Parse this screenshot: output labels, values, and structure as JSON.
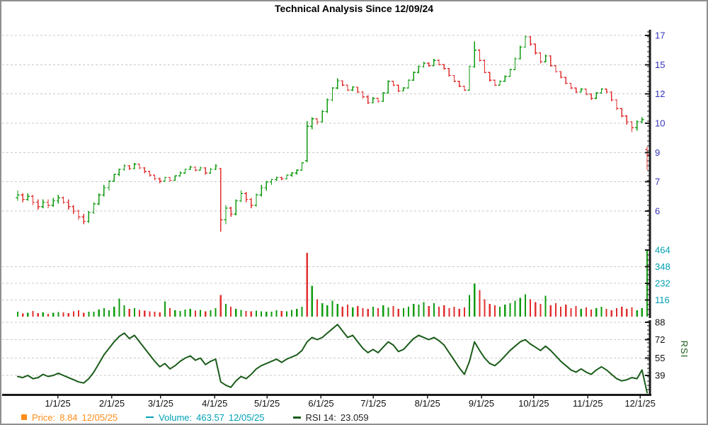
{
  "title": "Technical Analysis Since 12/09/24",
  "colors": {
    "up": "#0f9b0f",
    "down": "#e22f2f",
    "rsi_line": "#1a5c1a",
    "grid": "#c9c9c9",
    "axis": "#1a1a1a",
    "frame": "#8f8f8f",
    "price_axis_text": "#3333bb",
    "volume_axis_text": "#00a0b4",
    "rsi_axis_text": "#111111",
    "x_axis_text": "#111111",
    "title_text": "#000000"
  },
  "x_axis": {
    "labels": [
      "1/1/25",
      "2/1/25",
      "3/1/25",
      "4/1/25",
      "5/1/25",
      "6/1/25",
      "7/1/25",
      "8/1/25",
      "9/1/25",
      "10/1/25",
      "11/1/25",
      "12/1/25"
    ],
    "fractions": [
      0.0637,
      0.1496,
      0.2271,
      0.313,
      0.3961,
      0.482,
      0.5651,
      0.651,
      0.7368,
      0.8199,
      0.9058,
      0.9889
    ]
  },
  "legend": {
    "items": [
      {
        "marker": "square",
        "label": "Price:",
        "value": "8.84",
        "date": "12/05/25",
        "marker_color": "#ff8c1a",
        "text_color": "#ff8c1a"
      },
      {
        "marker": "dash",
        "label": "Volume:",
        "value": "463.57",
        "date": "12/05/25",
        "marker_color": "#00a0b4",
        "text_color": "#00a0b4"
      },
      {
        "marker": "thick-dash",
        "label": "RSI 14:",
        "value": "23.059",
        "date": "",
        "marker_color": "#1a5c1a",
        "text_color": "#222222"
      }
    ]
  },
  "chart_data": [
    {
      "type": "candlestick",
      "name": "Price",
      "title": "Technical Analysis Since 12/09/24",
      "y_ticks": [
        17,
        15,
        12,
        10,
        9,
        7,
        6
      ],
      "last_value": 8.84,
      "last_date": "12/05/25",
      "ohlc": [
        [
          6.45,
          6.7,
          6.35,
          6.55
        ],
        [
          6.55,
          6.6,
          6.3,
          6.4
        ],
        [
          6.4,
          6.6,
          6.35,
          6.5
        ],
        [
          6.5,
          6.55,
          6.2,
          6.3
        ],
        [
          6.3,
          6.4,
          6.05,
          6.15
        ],
        [
          6.15,
          6.4,
          6.1,
          6.3
        ],
        [
          6.3,
          6.4,
          6.1,
          6.2
        ],
        [
          6.2,
          6.45,
          6.15,
          6.35
        ],
        [
          6.35,
          6.55,
          6.25,
          6.45
        ],
        [
          6.45,
          6.5,
          6.25,
          6.3
        ],
        [
          6.3,
          6.4,
          6.05,
          6.15
        ],
        [
          6.15,
          6.2,
          5.9,
          6.0
        ],
        [
          6.0,
          6.05,
          5.7,
          5.8
        ],
        [
          5.8,
          5.9,
          5.55,
          5.65
        ],
        [
          5.65,
          6.0,
          5.6,
          5.95
        ],
        [
          5.95,
          6.3,
          5.9,
          6.25
        ],
        [
          6.25,
          6.6,
          6.2,
          6.55
        ],
        [
          6.55,
          6.9,
          6.5,
          6.8
        ],
        [
          6.8,
          7.1,
          6.7,
          7.05
        ],
        [
          7.05,
          7.55,
          7.0,
          7.5
        ],
        [
          7.5,
          7.9,
          7.4,
          7.85
        ],
        [
          7.85,
          8.2,
          7.75,
          8.1
        ],
        [
          8.1,
          8.15,
          7.8,
          7.9
        ],
        [
          7.9,
          8.3,
          7.85,
          8.2
        ],
        [
          8.2,
          8.25,
          7.85,
          7.95
        ],
        [
          7.95,
          8.0,
          7.6,
          7.7
        ],
        [
          7.7,
          7.75,
          7.35,
          7.45
        ],
        [
          7.45,
          7.5,
          7.1,
          7.2
        ],
        [
          7.2,
          7.3,
          6.95,
          7.05
        ],
        [
          7.05,
          7.35,
          7.0,
          7.3
        ],
        [
          7.3,
          7.35,
          7.0,
          7.1
        ],
        [
          7.1,
          7.45,
          7.05,
          7.4
        ],
        [
          7.4,
          7.7,
          7.35,
          7.6
        ],
        [
          7.6,
          7.9,
          7.55,
          7.85
        ],
        [
          7.85,
          8.1,
          7.8,
          8.0
        ],
        [
          8.0,
          8.05,
          7.7,
          7.8
        ],
        [
          7.8,
          8.05,
          7.75,
          7.95
        ],
        [
          7.95,
          8.0,
          7.5,
          7.6
        ],
        [
          7.6,
          7.95,
          7.55,
          7.85
        ],
        [
          7.85,
          8.2,
          7.8,
          8.1
        ],
        [
          7.9,
          7.95,
          5.3,
          5.7
        ],
        [
          5.7,
          6.2,
          5.55,
          6.1
        ],
        [
          6.1,
          6.15,
          5.8,
          5.9
        ],
        [
          5.9,
          6.4,
          5.85,
          6.35
        ],
        [
          6.35,
          6.7,
          6.3,
          6.6
        ],
        [
          6.6,
          6.65,
          6.3,
          6.4
        ],
        [
          6.4,
          6.45,
          6.1,
          6.2
        ],
        [
          6.2,
          6.6,
          6.15,
          6.55
        ],
        [
          6.55,
          6.9,
          6.5,
          6.8
        ],
        [
          6.8,
          7.05,
          6.7,
          7.0
        ],
        [
          7.0,
          7.2,
          6.9,
          7.15
        ],
        [
          7.15,
          7.35,
          7.05,
          7.3
        ],
        [
          7.3,
          7.35,
          7.1,
          7.2
        ],
        [
          7.2,
          7.5,
          7.15,
          7.45
        ],
        [
          7.45,
          7.65,
          7.35,
          7.6
        ],
        [
          7.6,
          7.85,
          7.5,
          7.8
        ],
        [
          7.8,
          8.35,
          7.75,
          8.3
        ],
        [
          8.45,
          10.15,
          8.35,
          9.9
        ],
        [
          9.9,
          10.4,
          9.8,
          10.3
        ],
        [
          10.3,
          10.35,
          9.95,
          10.1
        ],
        [
          10.1,
          10.9,
          10.05,
          10.8
        ],
        [
          10.8,
          11.7,
          10.7,
          11.6
        ],
        [
          11.6,
          12.7,
          11.5,
          12.6
        ],
        [
          12.6,
          13.6,
          12.5,
          13.35
        ],
        [
          13.35,
          13.4,
          12.8,
          12.9
        ],
        [
          12.9,
          12.95,
          12.3,
          12.4
        ],
        [
          12.4,
          12.8,
          12.3,
          12.7
        ],
        [
          12.7,
          12.75,
          12.1,
          12.2
        ],
        [
          12.2,
          12.3,
          11.7,
          11.8
        ],
        [
          11.8,
          11.9,
          11.3,
          11.4
        ],
        [
          11.4,
          11.8,
          11.35,
          11.7
        ],
        [
          11.7,
          11.75,
          11.4,
          11.5
        ],
        [
          11.5,
          12.2,
          11.45,
          12.1
        ],
        [
          12.1,
          13.4,
          12.05,
          13.3
        ],
        [
          13.3,
          13.35,
          12.8,
          12.9
        ],
        [
          12.9,
          12.95,
          12.2,
          12.3
        ],
        [
          12.3,
          12.7,
          12.25,
          12.6
        ],
        [
          12.6,
          13.5,
          12.55,
          13.4
        ],
        [
          13.4,
          14.3,
          13.35,
          14.2
        ],
        [
          14.2,
          14.9,
          14.1,
          14.8
        ],
        [
          14.8,
          15.2,
          14.7,
          15.1
        ],
        [
          15.1,
          15.15,
          14.8,
          14.9
        ],
        [
          14.9,
          15.4,
          14.85,
          15.3
        ],
        [
          15.3,
          15.35,
          14.9,
          15.0
        ],
        [
          15.0,
          15.05,
          14.5,
          14.6
        ],
        [
          14.6,
          14.65,
          13.8,
          13.9
        ],
        [
          13.9,
          13.95,
          13.2,
          13.3
        ],
        [
          13.3,
          13.35,
          12.7,
          12.8
        ],
        [
          12.8,
          12.85,
          12.3,
          12.4
        ],
        [
          12.4,
          14.9,
          12.35,
          14.8
        ],
        [
          14.8,
          16.6,
          14.7,
          16.0
        ],
        [
          16.0,
          16.05,
          15.2,
          15.3
        ],
        [
          15.3,
          15.35,
          14.1,
          14.2
        ],
        [
          14.2,
          14.25,
          13.3,
          13.4
        ],
        [
          13.4,
          13.45,
          12.8,
          12.9
        ],
        [
          12.9,
          13.4,
          12.85,
          13.3
        ],
        [
          13.3,
          13.9,
          13.25,
          13.8
        ],
        [
          13.8,
          14.6,
          13.75,
          14.5
        ],
        [
          14.5,
          15.5,
          14.45,
          15.4
        ],
        [
          15.4,
          16.3,
          15.35,
          16.2
        ],
        [
          16.2,
          17.0,
          16.15,
          16.9
        ],
        [
          16.9,
          16.95,
          16.3,
          16.4
        ],
        [
          16.4,
          16.45,
          15.7,
          15.8
        ],
        [
          15.8,
          15.85,
          15.1,
          15.2
        ],
        [
          15.2,
          15.7,
          15.15,
          15.6
        ],
        [
          15.6,
          15.65,
          14.8,
          14.9
        ],
        [
          14.9,
          14.95,
          14.2,
          14.3
        ],
        [
          14.3,
          14.35,
          13.6,
          13.7
        ],
        [
          13.7,
          13.75,
          13.0,
          13.1
        ],
        [
          13.1,
          13.15,
          12.5,
          12.6
        ],
        [
          12.6,
          12.65,
          12.1,
          12.2
        ],
        [
          12.2,
          12.6,
          12.15,
          12.5
        ],
        [
          12.5,
          12.55,
          11.9,
          12.0
        ],
        [
          12.0,
          12.05,
          11.6,
          11.7
        ],
        [
          11.7,
          12.2,
          11.65,
          12.1
        ],
        [
          12.1,
          12.6,
          12.05,
          12.5
        ],
        [
          12.5,
          12.55,
          12.1,
          12.2
        ],
        [
          12.2,
          12.25,
          11.5,
          11.6
        ],
        [
          11.6,
          11.65,
          10.9,
          11.0
        ],
        [
          11.0,
          11.05,
          10.4,
          10.5
        ],
        [
          10.5,
          10.55,
          9.95,
          10.1
        ],
        [
          10.1,
          10.15,
          9.7,
          9.85
        ],
        [
          9.85,
          10.2,
          9.75,
          10.1
        ],
        [
          10.1,
          10.4,
          10.0,
          10.25
        ],
        [
          9.1,
          9.2,
          7.8,
          8.84
        ]
      ]
    },
    {
      "type": "bar",
      "name": "Volume",
      "y_ticks": [
        464,
        348,
        232,
        116
      ],
      "last_value": 463.57,
      "last_date": "12/05/25",
      "values": [
        35,
        22,
        28,
        40,
        25,
        30,
        20,
        26,
        33,
        30,
        24,
        38,
        45,
        28,
        35,
        35,
        50,
        60,
        45,
        70,
        125,
        80,
        55,
        60,
        48,
        42,
        38,
        35,
        30,
        105,
        60,
        45,
        40,
        50,
        55,
        42,
        48,
        38,
        44,
        60,
        150,
        90,
        70,
        55,
        48,
        40,
        36,
        42,
        38,
        35,
        35,
        45,
        40,
        38,
        48,
        55,
        70,
        445,
        215,
        120,
        95,
        80,
        110,
        90,
        70,
        85,
        65,
        75,
        60,
        55,
        70,
        60,
        80,
        65,
        75,
        55,
        60,
        70,
        90,
        85,
        100,
        75,
        95,
        70,
        80,
        60,
        70,
        55,
        65,
        150,
        230,
        185,
        120,
        90,
        80,
        70,
        85,
        95,
        110,
        130,
        155,
        120,
        100,
        90,
        145,
        80,
        95,
        70,
        85,
        60,
        75,
        55,
        65,
        50,
        60,
        70,
        55,
        45,
        60,
        70,
        55,
        65,
        45,
        60,
        464
      ],
      "color_overrides": {
        "57": "down",
        "124": "up"
      }
    },
    {
      "type": "line",
      "name": "RSI 14",
      "axis_label": "RSI",
      "y_ticks": [
        88,
        72,
        55,
        39
      ],
      "last_value": 23.059,
      "values": [
        38,
        37,
        39,
        36,
        37,
        40,
        38,
        39,
        41,
        39,
        37,
        35,
        33,
        32,
        36,
        42,
        50,
        58,
        64,
        70,
        75,
        78,
        73,
        76,
        70,
        64,
        58,
        52,
        47,
        50,
        45,
        48,
        52,
        55,
        57,
        53,
        55,
        49,
        52,
        54,
        33,
        30,
        28,
        34,
        38,
        36,
        40,
        45,
        48,
        50,
        52,
        54,
        51,
        54,
        56,
        58,
        62,
        70,
        74,
        72,
        74,
        78,
        82,
        86,
        80,
        74,
        76,
        70,
        64,
        60,
        63,
        60,
        65,
        70,
        67,
        61,
        63,
        68,
        73,
        76,
        74,
        72,
        74,
        71,
        67,
        60,
        53,
        46,
        40,
        52,
        70,
        62,
        55,
        50,
        48,
        52,
        57,
        62,
        66,
        70,
        72,
        68,
        65,
        62,
        66,
        62,
        57,
        52,
        48,
        44,
        42,
        45,
        42,
        40,
        44,
        47,
        44,
        40,
        36,
        34,
        35,
        37,
        36,
        44,
        23.059
      ]
    }
  ]
}
